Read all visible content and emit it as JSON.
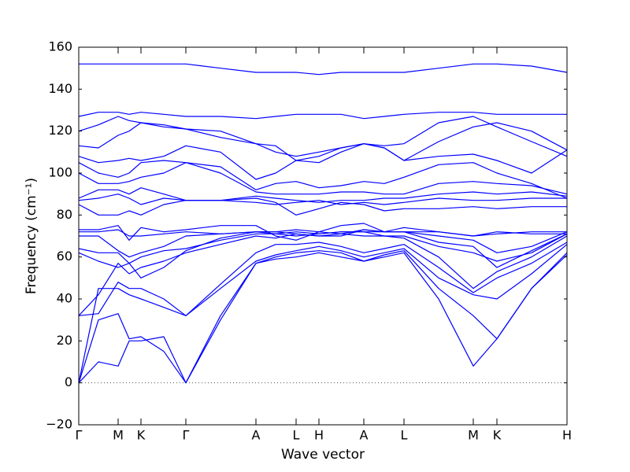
{
  "chart_data": {
    "type": "line",
    "xlabel": "Wave vector",
    "ylabel": "Frequency (cm⁻¹)",
    "xlim": [
      0,
      620
    ],
    "ylim": [
      -20,
      160
    ],
    "yticks": [
      {
        "value": -20,
        "label": "−20"
      },
      0,
      20,
      40,
      60,
      80,
      100,
      120,
      140,
      160
    ],
    "xticks": [
      {
        "value": 0,
        "label": "Γ"
      },
      {
        "value": 50,
        "label": "M"
      },
      {
        "value": 79,
        "label": "K"
      },
      {
        "value": 136,
        "label": "Γ"
      },
      {
        "value": 225,
        "label": "A"
      },
      {
        "value": 276,
        "label": "L"
      },
      {
        "value": 305,
        "label": "H"
      },
      {
        "value": 362,
        "label": "A"
      },
      {
        "value": 413,
        "label": "L"
      },
      {
        "value": 501,
        "label": "M"
      },
      {
        "value": 531,
        "label": "K"
      },
      {
        "value": 620,
        "label": "H"
      }
    ],
    "x": [
      0,
      25,
      50,
      64,
      79,
      108,
      136,
      180,
      225,
      250,
      276,
      305,
      333,
      362,
      388,
      413,
      457,
      501,
      531,
      575,
      620
    ],
    "color": "#0000ff",
    "series": [
      {
        "values": [
          0,
          10,
          8,
          20,
          20,
          22,
          0,
          30,
          57,
          59,
          60,
          62,
          60,
          58,
          60,
          62,
          40,
          8,
          21,
          45,
          61
        ]
      },
      {
        "values": [
          0,
          30,
          33,
          21,
          22,
          15,
          0,
          32,
          57,
          60,
          62,
          63,
          62,
          58,
          61,
          63,
          45,
          32,
          21,
          45,
          62
        ]
      },
      {
        "values": [
          0,
          45,
          45,
          42,
          40,
          36,
          32,
          45,
          58,
          61,
          63,
          65,
          63,
          60,
          62,
          64,
          50,
          42,
          40,
          52,
          66
        ]
      },
      {
        "values": [
          32,
          33,
          48,
          45,
          45,
          40,
          32,
          47,
          62,
          66,
          66,
          67,
          65,
          62,
          64,
          66,
          55,
          43,
          50,
          57,
          67
        ]
      },
      {
        "values": [
          32,
          42,
          57,
          52,
          55,
          58,
          62,
          66,
          70,
          69,
          71,
          70,
          71,
          70,
          70,
          69,
          60,
          45,
          53,
          60,
          70
        ]
      },
      {
        "values": [
          62,
          58,
          55,
          57,
          60,
          63,
          64,
          68,
          71,
          71,
          70,
          71,
          72,
          72,
          70,
          70,
          65,
          62,
          58,
          62,
          71
        ]
      },
      {
        "values": [
          64,
          62,
          62,
          57,
          50,
          55,
          63,
          69,
          72,
          72,
          73,
          72,
          71,
          73,
          72,
          72,
          67,
          65,
          55,
          63,
          71
        ]
      },
      {
        "values": [
          70,
          70,
          63,
          60,
          62,
          65,
          70,
          71,
          72,
          71,
          72,
          71,
          72,
          72,
          72,
          72,
          70,
          68,
          62,
          65,
          72
        ]
      },
      {
        "values": [
          72,
          72,
          73,
          70,
          70,
          71,
          72,
          71,
          72,
          72,
          71,
          70,
          70,
          73,
          72,
          72,
          72,
          70,
          72,
          71,
          71
        ]
      },
      {
        "values": [
          73,
          73,
          75,
          68,
          74,
          72,
          73,
          75,
          75,
          70,
          68,
          72,
          75,
          76,
          72,
          74,
          72,
          70,
          71,
          72,
          72
        ]
      },
      {
        "values": [
          85,
          80,
          80,
          82,
          80,
          85,
          87,
          87,
          88,
          86,
          80,
          83,
          86,
          85,
          82,
          83,
          83,
          84,
          83,
          84,
          84
        ]
      },
      {
        "values": [
          87,
          88,
          90,
          88,
          85,
          88,
          87,
          87,
          86,
          85,
          86,
          87,
          85,
          86,
          85,
          86,
          88,
          87,
          87,
          88,
          88
        ]
      },
      {
        "values": [
          88,
          92,
          92,
          90,
          93,
          90,
          87,
          87,
          89,
          88,
          87,
          86,
          87,
          87,
          88,
          88,
          90,
          91,
          90,
          91,
          89
        ]
      },
      {
        "values": [
          100,
          95,
          95,
          96,
          98,
          100,
          105,
          100,
          91,
          90,
          90,
          90,
          91,
          91,
          90,
          90,
          95,
          96,
          95,
          94,
          90
        ]
      },
      {
        "values": [
          105,
          100,
          98,
          100,
          105,
          106,
          105,
          103,
          92,
          95,
          96,
          93,
          94,
          96,
          95,
          98,
          104,
          105,
          100,
          95,
          88
        ]
      },
      {
        "values": [
          108,
          105,
          106,
          107,
          106,
          108,
          113,
          110,
          97,
          100,
          106,
          108,
          112,
          114,
          112,
          106,
          108,
          109,
          106,
          100,
          111
        ]
      },
      {
        "values": [
          113,
          112,
          118,
          120,
          124,
          123,
          121,
          117,
          114,
          113,
          106,
          105,
          110,
          114,
          113,
          114,
          124,
          127,
          122,
          115,
          108
        ]
      },
      {
        "values": [
          120,
          123,
          127,
          125,
          124,
          122,
          121,
          120,
          114,
          110,
          108,
          110,
          112,
          114,
          112,
          106,
          115,
          122,
          124,
          120,
          111
        ]
      },
      {
        "values": [
          127,
          129,
          129,
          128,
          129,
          128,
          127,
          127,
          126,
          127,
          128,
          128,
          128,
          126,
          127,
          128,
          129,
          129,
          128,
          128,
          128
        ]
      },
      {
        "values": [
          152,
          152,
          152,
          152,
          152,
          152,
          152,
          150,
          148,
          148,
          148,
          147,
          148,
          148,
          148,
          148,
          150,
          152,
          152,
          151,
          148
        ]
      }
    ]
  }
}
